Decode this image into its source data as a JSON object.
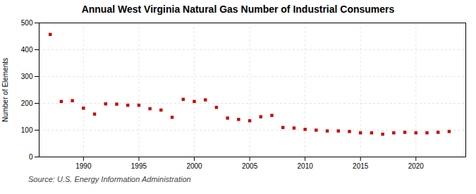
{
  "chart_data": {
    "type": "scatter",
    "title": "Annual West Virginia Natural Gas Number of Industrial Consumers",
    "ylabel": "Number of Elements",
    "caption": "Source: U.S. Energy Information Administration",
    "x": [
      1987,
      1988,
      1989,
      1990,
      1991,
      1992,
      1993,
      1994,
      1995,
      1996,
      1997,
      1998,
      1999,
      2000,
      2001,
      2002,
      2003,
      2004,
      2005,
      2006,
      2007,
      2008,
      2009,
      2010,
      2011,
      2012,
      2013,
      2014,
      2015,
      2016,
      2017,
      2018,
      2019,
      2020,
      2021,
      2022,
      2023
    ],
    "values": [
      457,
      207,
      210,
      182,
      160,
      198,
      197,
      193,
      193,
      180,
      175,
      148,
      215,
      207,
      213,
      185,
      145,
      140,
      135,
      150,
      155,
      110,
      108,
      103,
      100,
      97,
      97,
      95,
      90,
      90,
      85,
      90,
      92,
      90,
      90,
      92,
      95
    ],
    "color": "#cc0000",
    "marker": "square",
    "grid": true,
    "xlim": [
      1986,
      2024.5
    ],
    "ylim": [
      0,
      500
    ],
    "xticks": [
      1990,
      1995,
      2000,
      2005,
      2010,
      2015,
      2020
    ],
    "yticks": [
      0,
      100,
      200,
      300,
      400,
      500
    ]
  }
}
